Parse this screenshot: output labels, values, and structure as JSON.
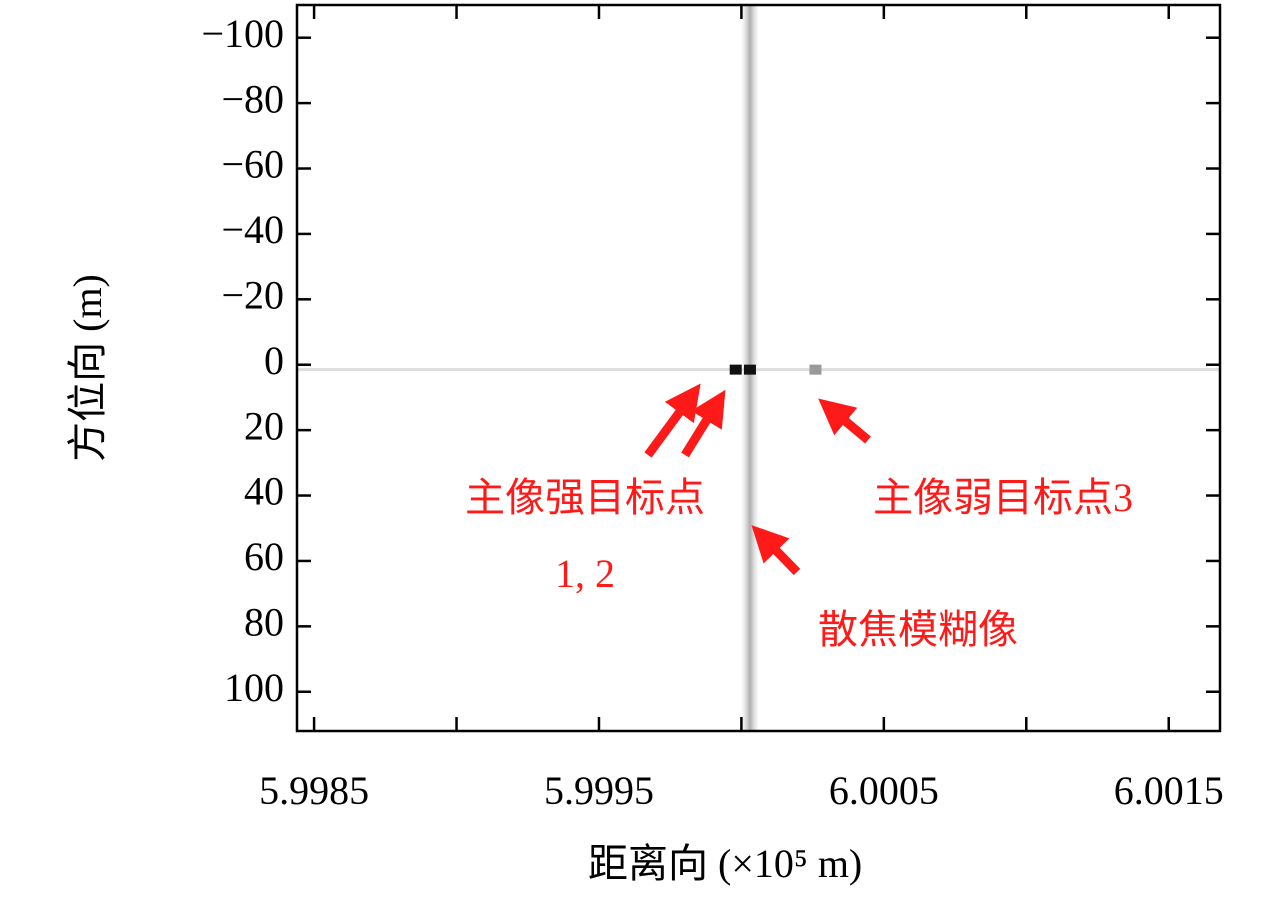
{
  "chart_data": {
    "type": "image",
    "xlabel": "距离向 (×10⁵ m)",
    "ylabel": "方位向 (m)",
    "xlim": [
      5.99844,
      6.00168
    ],
    "ylim": [
      -110,
      112
    ],
    "y_inverted": true,
    "xticks": [
      5.9985,
      5.9995,
      6.0005,
      6.0015
    ],
    "xminorticks": [
      5.999,
      6.0,
      6.001
    ],
    "yticks": [
      {
        "value": -100,
        "label": "−100"
      },
      {
        "value": -80,
        "label": "−80"
      },
      {
        "value": -60,
        "label": "−60"
      },
      {
        "value": -40,
        "label": "−40"
      },
      {
        "value": -20,
        "label": "−20"
      },
      0,
      20,
      40,
      60,
      80,
      100
    ],
    "defocus_stripe_x": 6.00003,
    "azimuth_line_y": 1.5,
    "targets": {
      "x": [
        5.99998,
        6.00003,
        6.00026
      ],
      "y": [
        1.5,
        1.5,
        1.5
      ],
      "colors": [
        "#111111",
        "#111111",
        "#999999"
      ]
    },
    "annotations": [
      "主像强目标点",
      "1, 2",
      "散焦模糊像",
      "主像弱目标点3"
    ],
    "annotation_color": "#ff1a1a"
  }
}
